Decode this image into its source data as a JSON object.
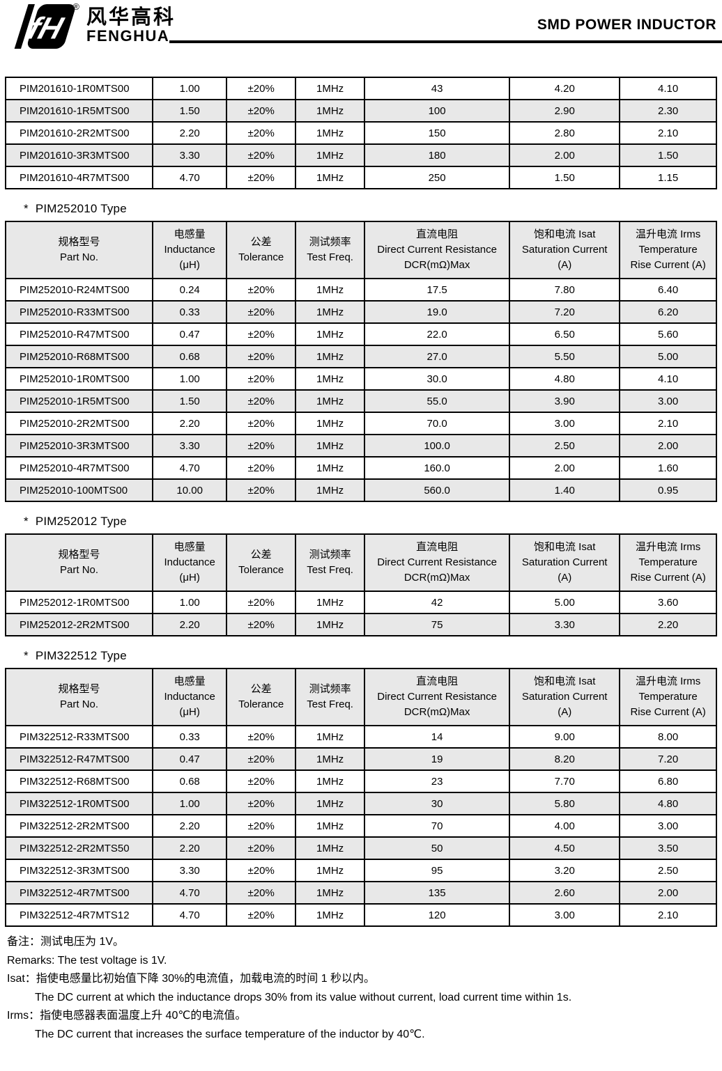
{
  "header": {
    "brand_cn": "风华高科",
    "brand_en": "FENGHUA",
    "registered_mark": "®",
    "doc_title": "SMD POWER INDUCTOR"
  },
  "columns": [
    {
      "key": "part_no",
      "lines": [
        "规格型号",
        "Part No."
      ]
    },
    {
      "key": "inductance",
      "lines": [
        "电感量",
        "Inductance",
        "(μH)"
      ]
    },
    {
      "key": "tolerance",
      "lines": [
        "公差",
        "Tolerance"
      ]
    },
    {
      "key": "test_freq",
      "lines": [
        "测试频率",
        "Test Freq."
      ]
    },
    {
      "key": "dcr",
      "lines": [
        "直流电阻",
        "Direct Current Resistance",
        "DCR(mΩ)Max"
      ]
    },
    {
      "key": "isat",
      "lines": [
        "饱和电流  Isat",
        "Saturation Current",
        "(A)"
      ]
    },
    {
      "key": "irms",
      "lines": [
        "温升电流  Irms",
        "Temperature",
        "Rise Current (A)"
      ]
    }
  ],
  "sections": [
    {
      "title": null,
      "bullet": null,
      "has_header": false,
      "rows": [
        [
          "PIM201610-1R0MTS00",
          "1.00",
          "±20%",
          "1MHz",
          "43",
          "4.20",
          "4.10"
        ],
        [
          "PIM201610-1R5MTS00",
          "1.50",
          "±20%",
          "1MHz",
          "100",
          "2.90",
          "2.30"
        ],
        [
          "PIM201610-2R2MTS00",
          "2.20",
          "±20%",
          "1MHz",
          "150",
          "2.80",
          "2.10"
        ],
        [
          "PIM201610-3R3MTS00",
          "3.30",
          "±20%",
          "1MHz",
          "180",
          "2.00",
          "1.50"
        ],
        [
          "PIM201610-4R7MTS00",
          "4.70",
          "±20%",
          "1MHz",
          "250",
          "1.50",
          "1.15"
        ]
      ]
    },
    {
      "title": "PIM252010 Type",
      "bullet": "*",
      "has_header": true,
      "rows": [
        [
          "PIM252010-R24MTS00",
          "0.24",
          "±20%",
          "1MHz",
          "17.5",
          "7.80",
          "6.40"
        ],
        [
          "PIM252010-R33MTS00",
          "0.33",
          "±20%",
          "1MHz",
          "19.0",
          "7.20",
          "6.20"
        ],
        [
          "PIM252010-R47MTS00",
          "0.47",
          "±20%",
          "1MHz",
          "22.0",
          "6.50",
          "5.60"
        ],
        [
          "PIM252010-R68MTS00",
          "0.68",
          "±20%",
          "1MHz",
          "27.0",
          "5.50",
          "5.00"
        ],
        [
          "PIM252010-1R0MTS00",
          "1.00",
          "±20%",
          "1MHz",
          "30.0",
          "4.80",
          "4.10"
        ],
        [
          "PIM252010-1R5MTS00",
          "1.50",
          "±20%",
          "1MHz",
          "55.0",
          "3.90",
          "3.00"
        ],
        [
          "PIM252010-2R2MTS00",
          "2.20",
          "±20%",
          "1MHz",
          "70.0",
          "3.00",
          "2.10"
        ],
        [
          "PIM252010-3R3MTS00",
          "3.30",
          "±20%",
          "1MHz",
          "100.0",
          "2.50",
          "2.00"
        ],
        [
          "PIM252010-4R7MTS00",
          "4.70",
          "±20%",
          "1MHz",
          "160.0",
          "2.00",
          "1.60"
        ],
        [
          "PIM252010-100MTS00",
          "10.00",
          "±20%",
          "1MHz",
          "560.0",
          "1.40",
          "0.95"
        ]
      ]
    },
    {
      "title": "PIM252012 Type",
      "bullet": "*",
      "has_header": true,
      "rows": [
        [
          "PIM252012-1R0MTS00",
          "1.00",
          "±20%",
          "1MHz",
          "42",
          "5.00",
          "3.60"
        ],
        [
          "PIM252012-2R2MTS00",
          "2.20",
          "±20%",
          "1MHz",
          "75",
          "3.30",
          "2.20"
        ]
      ]
    },
    {
      "title": "PIM322512 Type",
      "bullet": "*",
      "has_header": true,
      "rows": [
        [
          "PIM322512-R33MTS00",
          "0.33",
          "±20%",
          "1MHz",
          "14",
          "9.00",
          "8.00"
        ],
        [
          "PIM322512-R47MTS00",
          "0.47",
          "±20%",
          "1MHz",
          "19",
          "8.20",
          "7.20"
        ],
        [
          "PIM322512-R68MTS00",
          "0.68",
          "±20%",
          "1MHz",
          "23",
          "7.70",
          "6.80"
        ],
        [
          "PIM322512-1R0MTS00",
          "1.00",
          "±20%",
          "1MHz",
          "30",
          "5.80",
          "4.80"
        ],
        [
          "PIM322512-2R2MTS00",
          "2.20",
          "±20%",
          "1MHz",
          "70",
          "4.00",
          "3.00"
        ],
        [
          "PIM322512-2R2MTS50",
          "2.20",
          "±20%",
          "1MHz",
          "50",
          "4.50",
          "3.50"
        ],
        [
          "PIM322512-3R3MTS00",
          "3.30",
          "±20%",
          "1MHz",
          "95",
          "3.20",
          "2.50"
        ],
        [
          "PIM322512-4R7MTS00",
          "4.70",
          "±20%",
          "1MHz",
          "135",
          "2.60",
          "2.00"
        ],
        [
          "PIM322512-4R7MTS12",
          "4.70",
          "±20%",
          "1MHz",
          "120",
          "3.00",
          "2.10"
        ]
      ]
    }
  ],
  "remarks": {
    "lines": [
      {
        "text": "备注：测试电压为 1V。",
        "indent": false
      },
      {
        "text": "Remarks: The test voltage is 1V.",
        "indent": false
      },
      {
        "text": "Isat：指使电感量比初始值下降 30%的电流值，加载电流的时间 1 秒以内。",
        "indent": false
      },
      {
        "text": "The DC current at which the inductance drops 30% from its value without current, load current time within 1s.",
        "indent": true
      },
      {
        "text": "Irms：指使电感器表面温度上升 40℃的电流值。",
        "indent": false
      },
      {
        "text": "The DC current that increases the surface temperature of the inductor by 40℃.",
        "indent": true
      }
    ]
  },
  "colors": {
    "row_alt": "#e8e8e8",
    "border": "#000000",
    "text": "#000000",
    "logo": "#000000"
  }
}
